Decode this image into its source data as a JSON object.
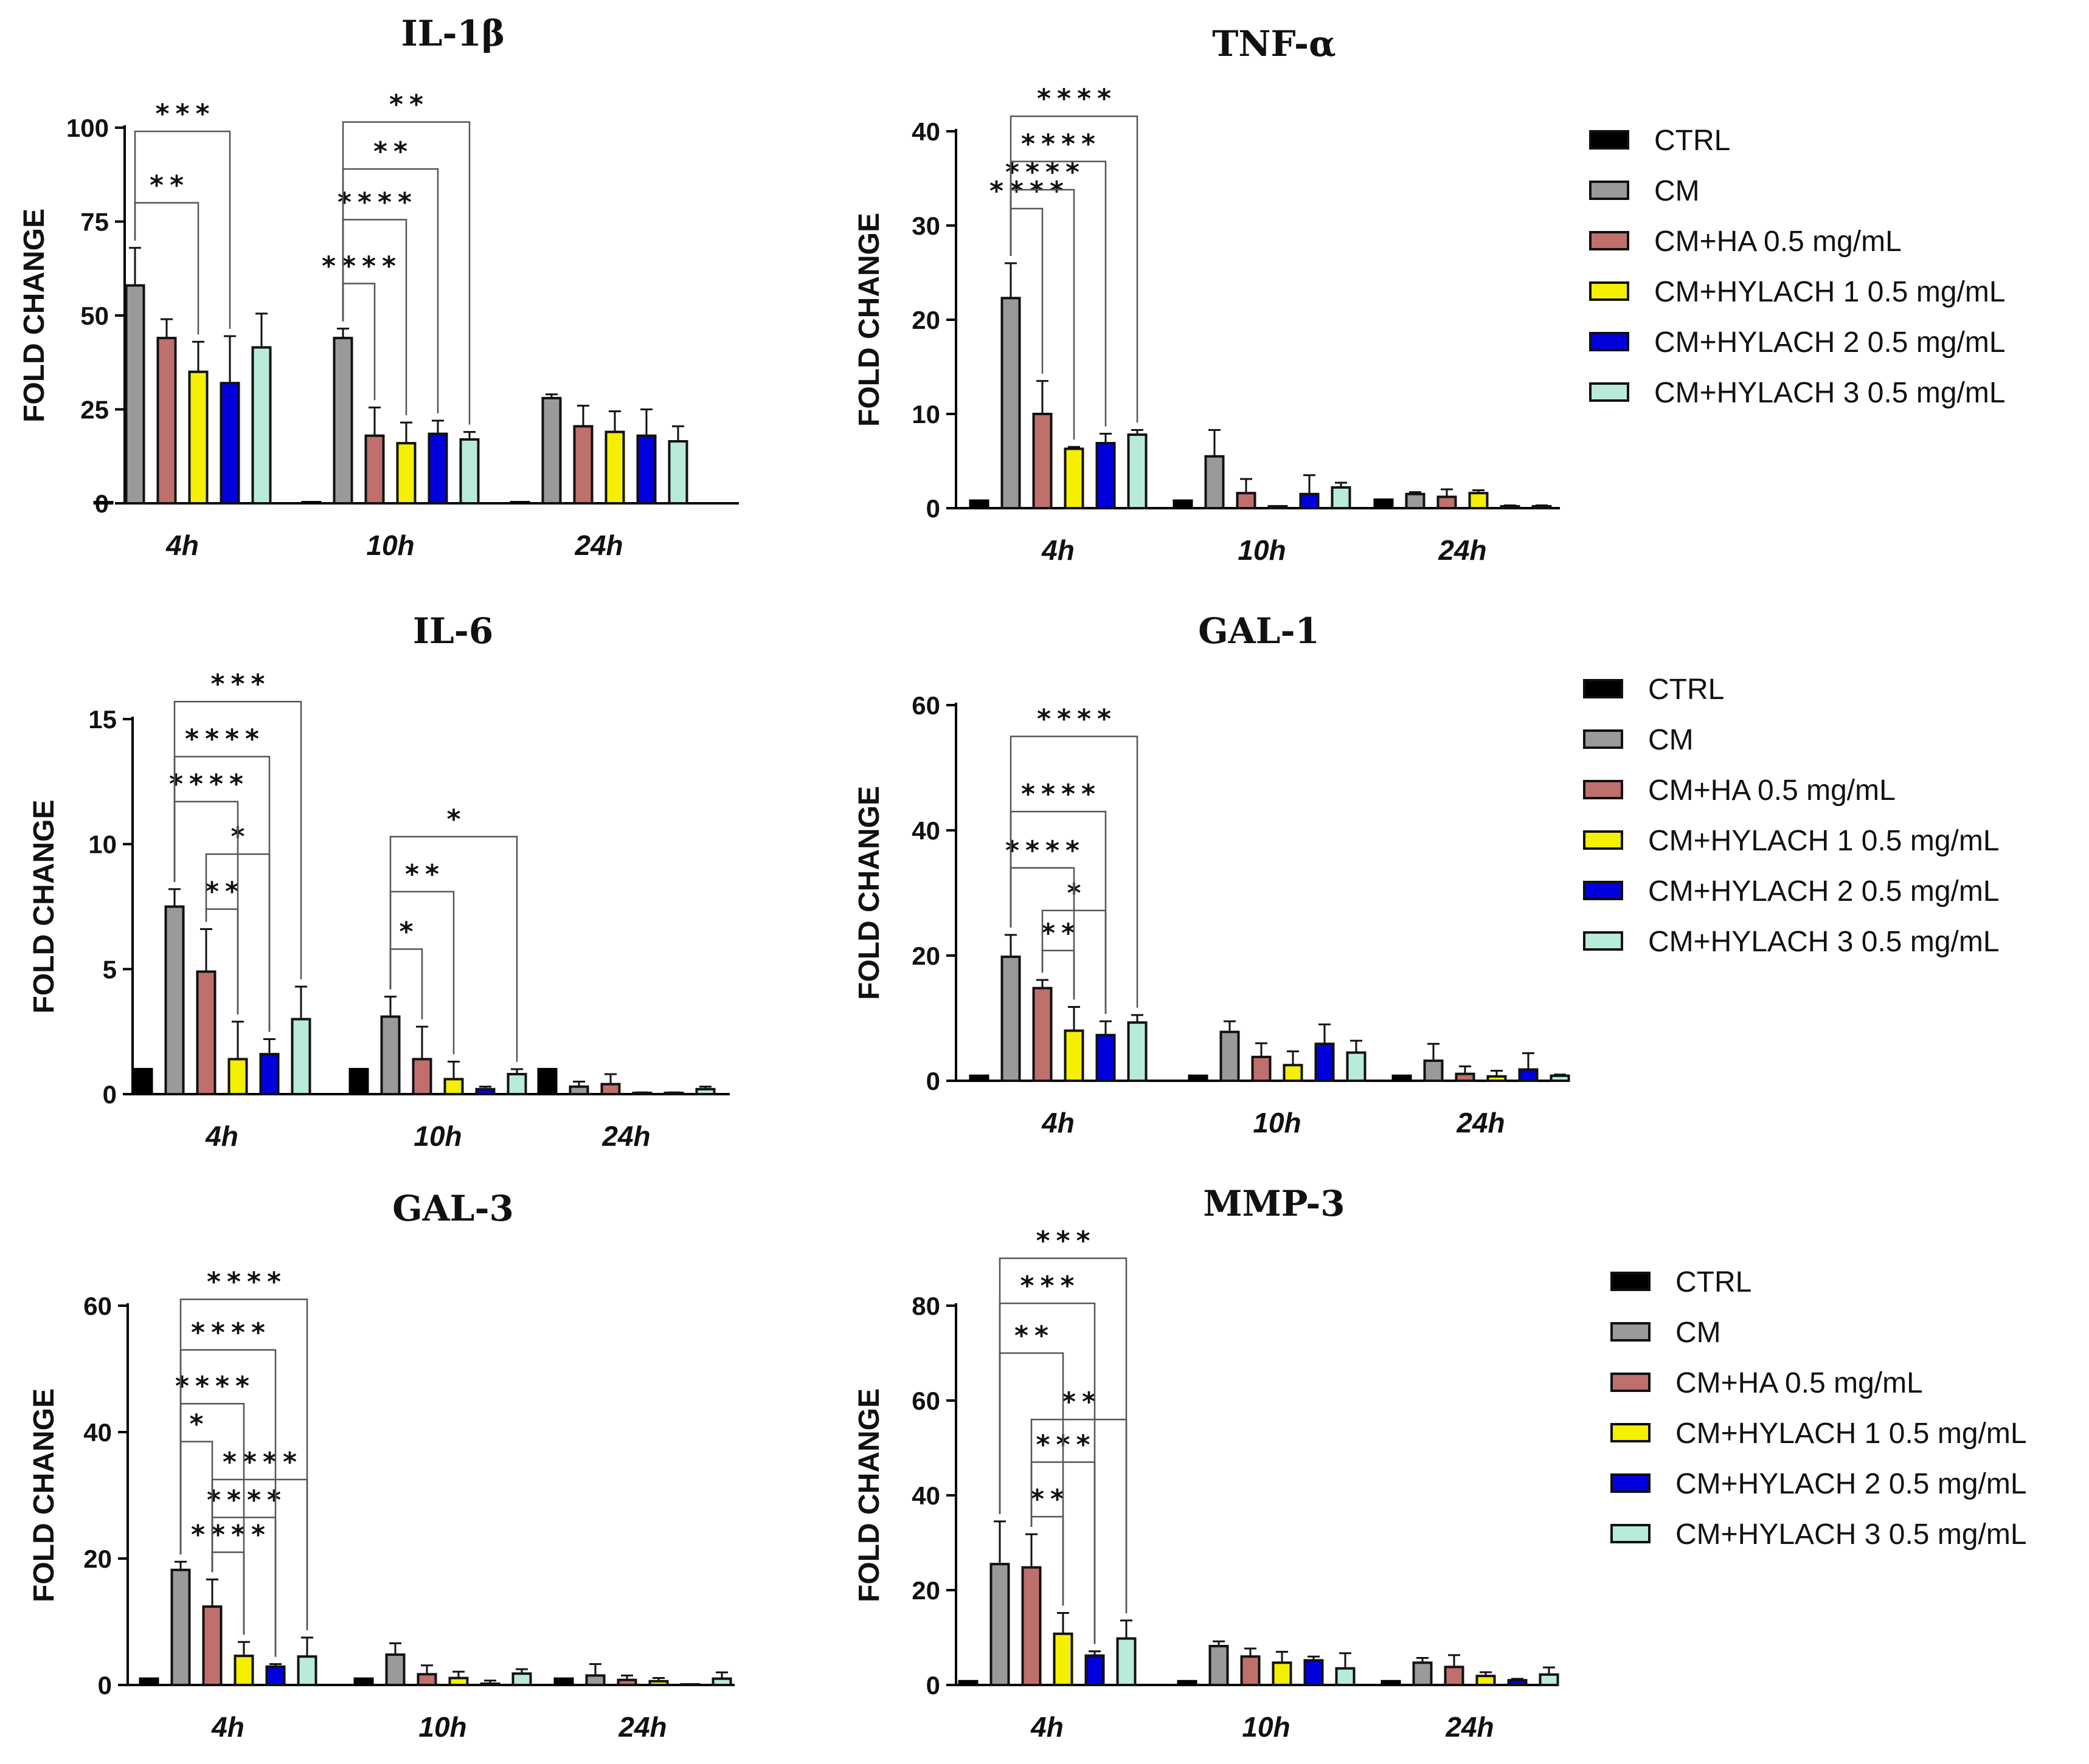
{
  "series_names": [
    "CTRL",
    "CM",
    "CM+HA 0.5 mg/mL",
    "CM+HYLACH 1 0.5 mg/mL",
    "CM+HYLACH 2 0.5 mg/mL",
    "CM+HYLACH 3 0.5 mg/mL"
  ],
  "series_colors": [
    "#000000",
    "#9a9a9a",
    "#c0706c",
    "#f5f000",
    "#0000dd",
    "#b8ecd8"
  ],
  "legends": [
    {
      "title": "legend-top"
    },
    {
      "title": "legend-middle"
    },
    {
      "title": "legend-bottom"
    }
  ],
  "chart_data": [
    {
      "type": "bar",
      "title": "IL-1β",
      "ylabel": "FOLD CHANGE",
      "categories": [
        "4h",
        "10h",
        "24h"
      ],
      "ylim": [
        0,
        100
      ],
      "yticks": [
        0,
        25,
        50,
        75,
        100
      ],
      "series": [
        {
          "name": "CTRL",
          "values": [
            0.3,
            0.3,
            0.3
          ],
          "errors": [
            0,
            0,
            0
          ]
        },
        {
          "name": "CM",
          "values": [
            58,
            44,
            28
          ],
          "errors": [
            10,
            2.5,
            1
          ]
        },
        {
          "name": "CM+HA 0.5 mg/mL",
          "values": [
            44,
            18,
            20.5
          ],
          "errors": [
            5,
            7.5,
            5.5
          ]
        },
        {
          "name": "CM+HYLACH 1 0.5 mg/mL",
          "values": [
            35,
            16,
            19
          ],
          "errors": [
            8,
            5.5,
            5.5
          ]
        },
        {
          "name": "CM+HYLACH 2 0.5 mg/mL",
          "values": [
            32,
            18.5,
            18
          ],
          "errors": [
            12.5,
            3.5,
            7
          ]
        },
        {
          "name": "CM+HYLACH 3 0.5 mg/mL",
          "values": [
            41.5,
            17,
            16.5
          ],
          "errors": [
            9,
            2,
            4
          ]
        }
      ],
      "brackets": [
        {
          "group": 0,
          "from": 1,
          "to": 3,
          "y": 80,
          "stars": "**"
        },
        {
          "group": 0,
          "from": 1,
          "to": 4,
          "y": 99,
          "stars": "***"
        },
        {
          "group": 1,
          "from": 1,
          "to": 2,
          "y": 58.5,
          "stars": "****"
        },
        {
          "group": 1,
          "from": 1,
          "to": 3,
          "y": 75.5,
          "stars": "****"
        },
        {
          "group": 1,
          "from": 1,
          "to": 4,
          "y": 89,
          "stars": "**"
        },
        {
          "group": 1,
          "from": 1,
          "to": 5,
          "y": 101.5,
          "stars": "**"
        }
      ]
    },
    {
      "type": "bar",
      "title": "TNF-α",
      "ylabel": "FOLD CHANGE",
      "categories": [
        "4h",
        "10h",
        "24h"
      ],
      "ylim": [
        0,
        40
      ],
      "yticks": [
        0,
        10,
        20,
        30,
        40
      ],
      "series": [
        {
          "name": "CTRL",
          "values": [
            0.8,
            0.8,
            0.9
          ],
          "errors": [
            0,
            0,
            0
          ]
        },
        {
          "name": "CM",
          "values": [
            22.3,
            5.5,
            1.5
          ],
          "errors": [
            3.7,
            2.8,
            0.2
          ]
        },
        {
          "name": "CM+HA 0.5 mg/mL",
          "values": [
            10,
            1.6,
            1.2
          ],
          "errors": [
            3.5,
            1.5,
            0.8
          ]
        },
        {
          "name": "CM+HYLACH 1 0.5 mg/mL",
          "values": [
            6.3,
            0.2,
            1.6
          ],
          "errors": [
            0.2,
            0,
            0.3
          ]
        },
        {
          "name": "CM+HYLACH 2 0.5 mg/mL",
          "values": [
            6.9,
            1.5,
            0.2
          ],
          "errors": [
            1,
            2,
            0.1
          ]
        },
        {
          "name": "CM+HYLACH 3 0.5 mg/mL",
          "values": [
            7.8,
            2.2,
            0.2
          ],
          "errors": [
            0.5,
            0.5,
            0.1
          ]
        }
      ],
      "brackets": [
        {
          "group": 0,
          "from": 1,
          "to": 2,
          "y": 31.8,
          "stars": "****"
        },
        {
          "group": 0,
          "from": 1,
          "to": 3,
          "y": 33.8,
          "stars": "****"
        },
        {
          "group": 0,
          "from": 1,
          "to": 4,
          "y": 36.8,
          "stars": "****"
        },
        {
          "group": 0,
          "from": 1,
          "to": 5,
          "y": 41.6,
          "stars": "****"
        }
      ]
    },
    {
      "type": "bar",
      "title": "IL-6",
      "ylabel": "FOLD CHANGE",
      "categories": [
        "4h",
        "10h",
        "24h"
      ],
      "ylim": [
        0,
        15
      ],
      "yticks": [
        0,
        5,
        10,
        15
      ],
      "series": [
        {
          "name": "CTRL",
          "values": [
            1,
            1,
            1
          ],
          "errors": [
            0,
            0,
            0
          ]
        },
        {
          "name": "CM",
          "values": [
            7.5,
            3.1,
            0.3
          ],
          "errors": [
            0.7,
            0.8,
            0.2
          ]
        },
        {
          "name": "CM+HA 0.5 mg/mL",
          "values": [
            4.9,
            1.4,
            0.4
          ],
          "errors": [
            1.7,
            1.3,
            0.4
          ]
        },
        {
          "name": "CM+HYLACH 1 0.5 mg/mL",
          "values": [
            1.4,
            0.6,
            0.05
          ],
          "errors": [
            1.5,
            0.7,
            0.02
          ]
        },
        {
          "name": "CM+HYLACH 2 0.5 mg/mL",
          "values": [
            1.6,
            0.2,
            0.05
          ],
          "errors": [
            0.6,
            0.1,
            0.02
          ]
        },
        {
          "name": "CM+HYLACH 3 0.5 mg/mL",
          "values": [
            3.0,
            0.8,
            0.2
          ],
          "errors": [
            1.3,
            0.2,
            0.1
          ]
        }
      ],
      "brackets": [
        {
          "group": 0,
          "from": 2,
          "to": 3,
          "y": 7.4,
          "stars": "**"
        },
        {
          "group": 0,
          "from": 2,
          "to": 4,
          "y": 9.6,
          "stars": "*"
        },
        {
          "group": 0,
          "from": 1,
          "to": 3,
          "y": 11.7,
          "stars": "****"
        },
        {
          "group": 0,
          "from": 1,
          "to": 4,
          "y": 13.5,
          "stars": "****"
        },
        {
          "group": 0,
          "from": 1,
          "to": 5,
          "y": 15.7,
          "stars": "***"
        },
        {
          "group": 1,
          "from": 1,
          "to": 2,
          "y": 5.8,
          "stars": "*"
        },
        {
          "group": 1,
          "from": 1,
          "to": 3,
          "y": 8.1,
          "stars": "**"
        },
        {
          "group": 1,
          "from": 1,
          "to": 5,
          "y": 10.3,
          "stars": "*"
        }
      ]
    },
    {
      "type": "bar",
      "title": "GAL-1",
      "ylabel": "FOLD CHANGE",
      "categories": [
        "4h",
        "10h",
        "24h"
      ],
      "ylim": [
        0,
        60
      ],
      "yticks": [
        0,
        20,
        40,
        60
      ],
      "series": [
        {
          "name": "CTRL",
          "values": [
            0.8,
            0.8,
            0.8
          ],
          "errors": [
            0,
            0,
            0
          ]
        },
        {
          "name": "CM",
          "values": [
            19.8,
            7.8,
            3.2
          ],
          "errors": [
            3.5,
            1.7,
            2.7
          ]
        },
        {
          "name": "CM+HA 0.5 mg/mL",
          "values": [
            14.8,
            3.8,
            1.1
          ],
          "errors": [
            1.3,
            2.2,
            1.2
          ]
        },
        {
          "name": "CM+HYLACH 1 0.5 mg/mL",
          "values": [
            8.0,
            2.5,
            0.7
          ],
          "errors": [
            3.8,
            2.2,
            0.9
          ]
        },
        {
          "name": "CM+HYLACH 2 0.5 mg/mL",
          "values": [
            7.3,
            5.9,
            1.8
          ],
          "errors": [
            2.2,
            3.1,
            2.6
          ]
        },
        {
          "name": "CM+HYLACH 3 0.5 mg/mL",
          "values": [
            9.3,
            4.5,
            0.8
          ],
          "errors": [
            1.2,
            1.9,
            0.2
          ]
        }
      ],
      "brackets": [
        {
          "group": 0,
          "from": 2,
          "to": 3,
          "y": 20.8,
          "stars": "**"
        },
        {
          "group": 0,
          "from": 2,
          "to": 4,
          "y": 27.2,
          "stars": "*"
        },
        {
          "group": 0,
          "from": 1,
          "to": 3,
          "y": 34,
          "stars": "****"
        },
        {
          "group": 0,
          "from": 1,
          "to": 4,
          "y": 43,
          "stars": "****"
        },
        {
          "group": 0,
          "from": 1,
          "to": 5,
          "y": 55,
          "stars": "****"
        }
      ]
    },
    {
      "type": "bar",
      "title": "GAL-3",
      "ylabel": "FOLD CHANGE",
      "categories": [
        "4h",
        "10h",
        "24h"
      ],
      "ylim": [
        0,
        60
      ],
      "yticks": [
        0,
        20,
        40,
        60
      ],
      "series": [
        {
          "name": "CTRL",
          "values": [
            1,
            1,
            1
          ],
          "errors": [
            0,
            0,
            0
          ]
        },
        {
          "name": "CM",
          "values": [
            18.2,
            4.8,
            1.5
          ],
          "errors": [
            1.3,
            1.8,
            1.8
          ]
        },
        {
          "name": "CM+HA 0.5 mg/mL",
          "values": [
            12.4,
            1.7,
            0.8
          ],
          "errors": [
            4.3,
            1.4,
            0.7
          ]
        },
        {
          "name": "CM+HYLACH 1 0.5 mg/mL",
          "values": [
            4.6,
            1.1,
            0.6
          ],
          "errors": [
            2.2,
            1,
            0.5
          ]
        },
        {
          "name": "CM+HYLACH 2 0.5 mg/mL",
          "values": [
            2.9,
            0.2,
            0.05
          ],
          "errors": [
            0.4,
            0.5,
            0.02
          ]
        },
        {
          "name": "CM+HYLACH 3 0.5 mg/mL",
          "values": [
            4.5,
            1.8,
            1.0
          ],
          "errors": [
            3.0,
            0.7,
            1.0
          ]
        }
      ],
      "brackets": [
        {
          "group": 0,
          "from": 2,
          "to": 3,
          "y": 21,
          "stars": "****"
        },
        {
          "group": 0,
          "from": 2,
          "to": 4,
          "y": 26.5,
          "stars": "****"
        },
        {
          "group": 0,
          "from": 2,
          "to": 5,
          "y": 32.5,
          "stars": "****"
        },
        {
          "group": 0,
          "from": 1,
          "to": 2,
          "y": 38.5,
          "stars": "*"
        },
        {
          "group": 0,
          "from": 1,
          "to": 3,
          "y": 44.5,
          "stars": "****"
        },
        {
          "group": 0,
          "from": 1,
          "to": 4,
          "y": 53,
          "stars": "****"
        },
        {
          "group": 0,
          "from": 1,
          "to": 5,
          "y": 61,
          "stars": "****"
        }
      ]
    },
    {
      "type": "bar",
      "title": "MMP-3",
      "ylabel": "FOLD CHANGE",
      "categories": [
        "4h",
        "10h",
        "24h"
      ],
      "ylim": [
        0,
        80
      ],
      "yticks": [
        0,
        20,
        40,
        60,
        80
      ],
      "series": [
        {
          "name": "CTRL",
          "values": [
            0.8,
            0.8,
            0.8
          ],
          "errors": [
            0,
            0,
            0
          ]
        },
        {
          "name": "CM",
          "values": [
            25.5,
            8.2,
            4.7
          ],
          "errors": [
            9,
            1,
            1
          ]
        },
        {
          "name": "CM+HA 0.5 mg/mL",
          "values": [
            24.8,
            6.0,
            3.8
          ],
          "errors": [
            7,
            1.7,
            2.5
          ]
        },
        {
          "name": "CM+HYLACH 1 0.5 mg/mL",
          "values": [
            10.8,
            4.7,
            1.9
          ],
          "errors": [
            4.4,
            2.3,
            0.8
          ]
        },
        {
          "name": "CM+HYLACH 2 0.5 mg/mL",
          "values": [
            6.2,
            5.2,
            1.0
          ],
          "errors": [
            0.9,
            0.8,
            0.3
          ]
        },
        {
          "name": "CM+HYLACH 3 0.5 mg/mL",
          "values": [
            9.8,
            3.5,
            2.2
          ],
          "errors": [
            3.8,
            3.2,
            1.5
          ]
        }
      ],
      "brackets": [
        {
          "group": 0,
          "from": 2,
          "to": 3,
          "y": 35.5,
          "stars": "**"
        },
        {
          "group": 0,
          "from": 2,
          "to": 4,
          "y": 47,
          "stars": "***"
        },
        {
          "group": 0,
          "from": 2,
          "to": 5,
          "y": 56,
          "stars": "**"
        },
        {
          "group": 0,
          "from": 1,
          "to": 3,
          "y": 70,
          "stars": "**"
        },
        {
          "group": 0,
          "from": 1,
          "to": 4,
          "y": 80.5,
          "stars": "***"
        },
        {
          "group": 0,
          "from": 1,
          "to": 5,
          "y": 90,
          "stars": "***"
        }
      ]
    }
  ]
}
